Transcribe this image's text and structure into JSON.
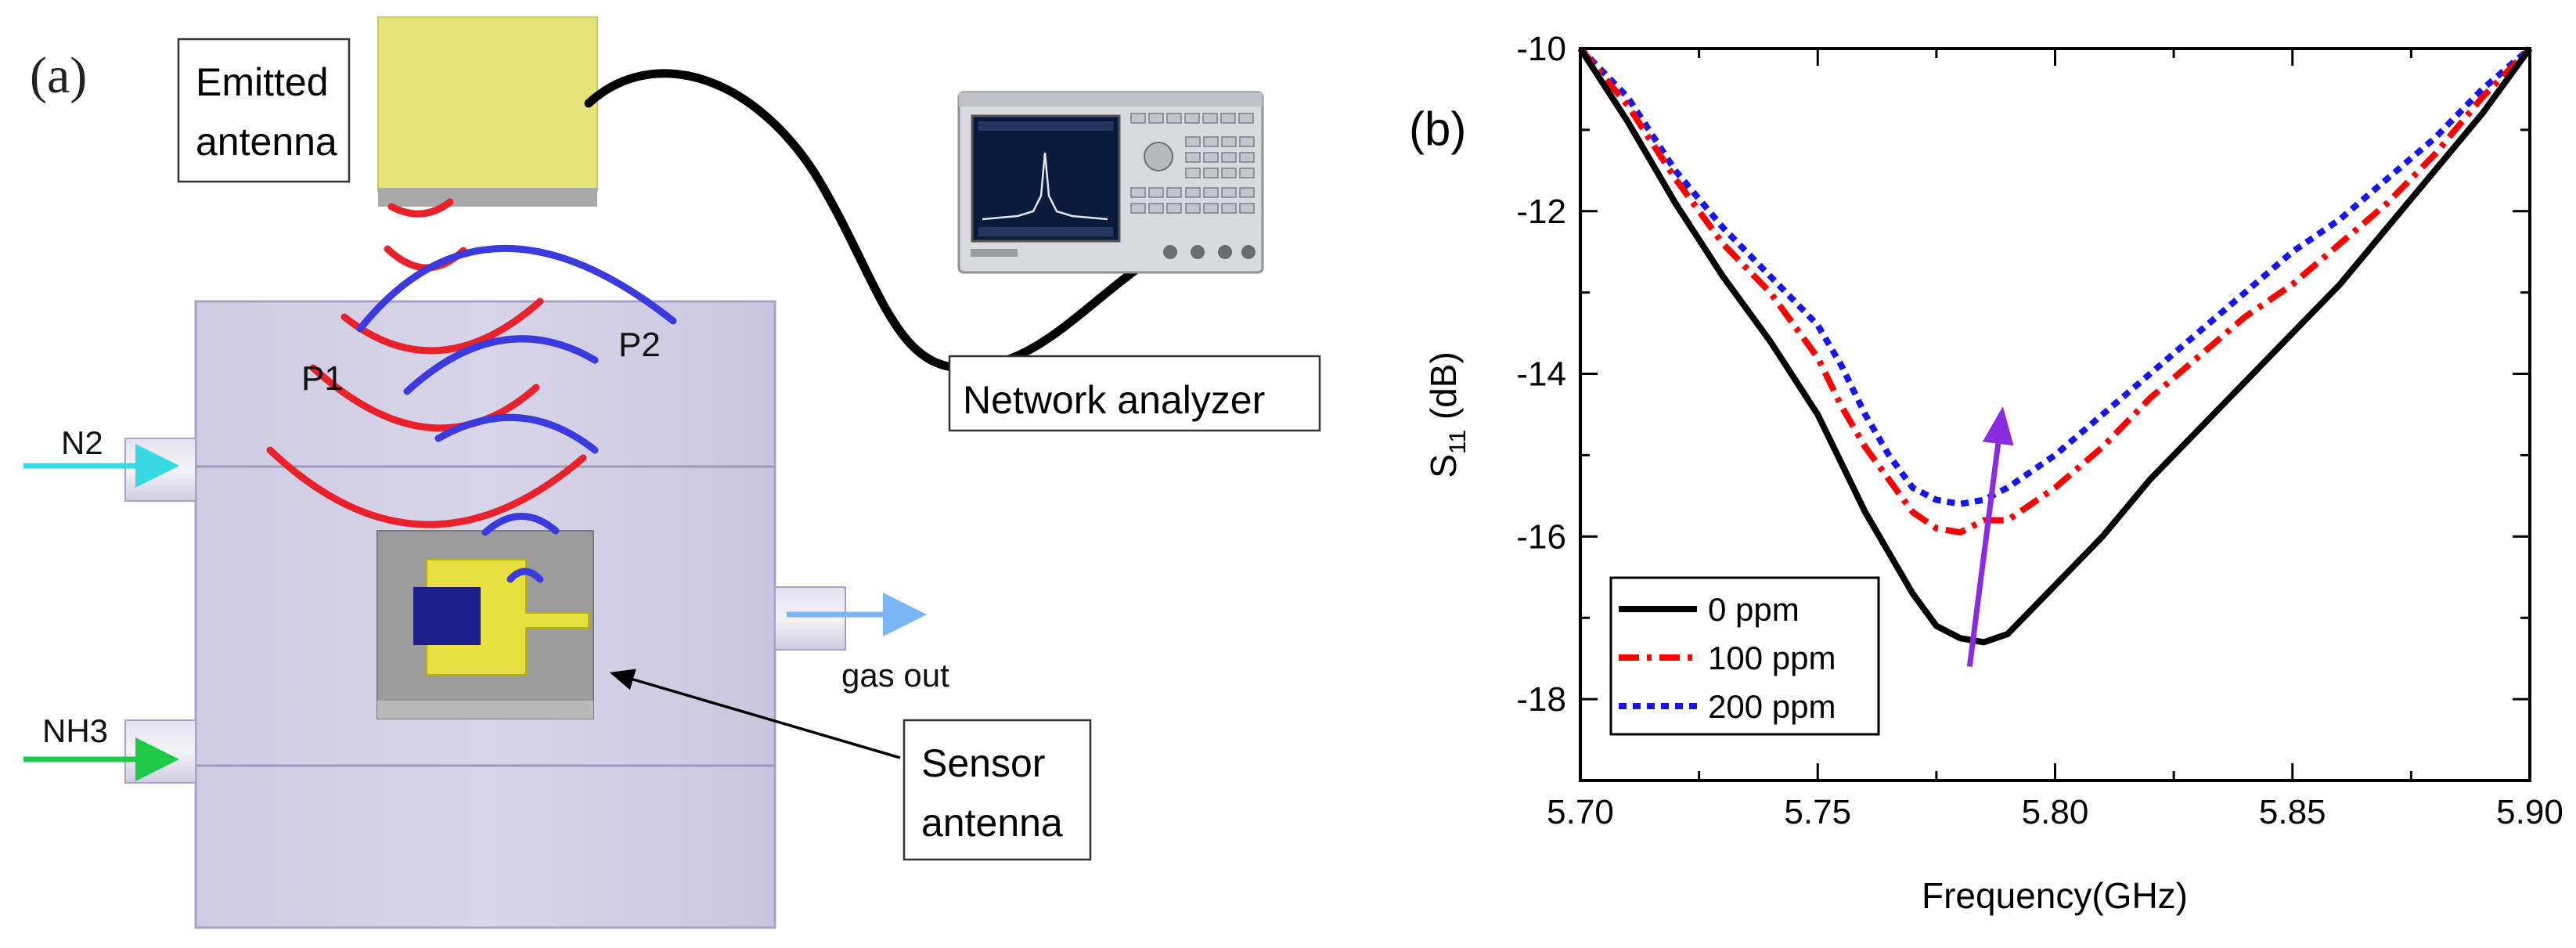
{
  "panel_a": {
    "label": "(a)",
    "emitted_antenna": {
      "line1": "Emitted",
      "line2": "antenna"
    },
    "network_analyzer": "Network analyzer",
    "sensor_antenna": {
      "line1": "Sensor",
      "line2": "antenna"
    },
    "port_labels": {
      "p1": "P1",
      "p2": "P2"
    },
    "gas_labels": {
      "n2": "N2",
      "nh3": "NH3",
      "gas_out": "gas out"
    },
    "colors": {
      "chamber": "#d5d2e6",
      "chamber_edge": "#a7a3c4",
      "antenna_yellow": "#e6e57a",
      "patch_yellow": "#e8df40",
      "patch_blue": "#1c1c8c",
      "wave_red": "#e8212b",
      "wave_blue": "#3a3ade",
      "n2_arrow": "#39d9e3",
      "nh3_arrow": "#1fc94a",
      "out_arrow": "#7ab6f5",
      "cable": "#000000"
    }
  },
  "panel_b": {
    "label": "(b)"
  },
  "chart_data": {
    "type": "line",
    "title": "",
    "xlabel": "Frequency(GHz)",
    "ylabel_main": "S",
    "ylabel_sub": "11",
    "ylabel_unit": " (dB)",
    "xlim": [
      5.7,
      5.9
    ],
    "ylim": [
      -19,
      -10
    ],
    "x_ticks": [
      5.7,
      5.75,
      5.8,
      5.85,
      5.9
    ],
    "x_tick_labels": [
      "5.70",
      "5.75",
      "5.80",
      "5.85",
      "5.90"
    ],
    "y_ticks": [
      -10,
      -12,
      -14,
      -16,
      -18
    ],
    "y_tick_labels": [
      "-10",
      "-12",
      "-14",
      "-16",
      "-18"
    ],
    "legend_position": "bottom-left",
    "series": [
      {
        "name": "0 ppm",
        "color": "#000000",
        "style": "solid",
        "x": [
          5.7,
          5.71,
          5.72,
          5.73,
          5.74,
          5.75,
          5.755,
          5.76,
          5.765,
          5.77,
          5.775,
          5.78,
          5.785,
          5.79,
          5.795,
          5.8,
          5.81,
          5.82,
          5.83,
          5.84,
          5.85,
          5.86,
          5.87,
          5.88,
          5.89,
          5.9
        ],
        "y": [
          -10.0,
          -10.9,
          -11.9,
          -12.8,
          -13.6,
          -14.5,
          -15.1,
          -15.7,
          -16.2,
          -16.7,
          -17.1,
          -17.25,
          -17.3,
          -17.2,
          -16.9,
          -16.6,
          -16.0,
          -15.3,
          -14.7,
          -14.1,
          -13.5,
          -12.9,
          -12.2,
          -11.5,
          -10.8,
          -10.0
        ]
      },
      {
        "name": "100 ppm",
        "color": "#ff0000",
        "style": "dashdot",
        "x": [
          5.7,
          5.71,
          5.72,
          5.73,
          5.74,
          5.75,
          5.755,
          5.76,
          5.765,
          5.77,
          5.775,
          5.78,
          5.785,
          5.79,
          5.795,
          5.8,
          5.81,
          5.82,
          5.83,
          5.84,
          5.85,
          5.86,
          5.87,
          5.88,
          5.89,
          5.9
        ],
        "y": [
          -10.0,
          -10.7,
          -11.6,
          -12.4,
          -13.0,
          -13.8,
          -14.4,
          -14.9,
          -15.3,
          -15.7,
          -15.9,
          -15.95,
          -15.8,
          -15.8,
          -15.6,
          -15.4,
          -14.9,
          -14.3,
          -13.8,
          -13.3,
          -12.9,
          -12.4,
          -11.9,
          -11.3,
          -10.6,
          -10.0
        ]
      },
      {
        "name": "200 ppm",
        "color": "#1515ee",
        "style": "dotted",
        "x": [
          5.7,
          5.71,
          5.72,
          5.73,
          5.74,
          5.75,
          5.755,
          5.76,
          5.765,
          5.77,
          5.775,
          5.78,
          5.785,
          5.79,
          5.795,
          5.8,
          5.81,
          5.82,
          5.83,
          5.84,
          5.85,
          5.86,
          5.87,
          5.88,
          5.89,
          5.9
        ],
        "y": [
          -10.0,
          -10.6,
          -11.5,
          -12.2,
          -12.8,
          -13.4,
          -13.9,
          -14.5,
          -15.0,
          -15.4,
          -15.55,
          -15.6,
          -15.55,
          -15.4,
          -15.2,
          -15.0,
          -14.5,
          -14.0,
          -13.5,
          -13.0,
          -12.5,
          -12.1,
          -11.6,
          -11.1,
          -10.5,
          -10.0
        ]
      }
    ],
    "annotation": {
      "type": "arrow",
      "color": "#8a2be2",
      "from": [
        5.782,
        -17.6
      ],
      "to": [
        5.789,
        -14.4
      ]
    }
  }
}
